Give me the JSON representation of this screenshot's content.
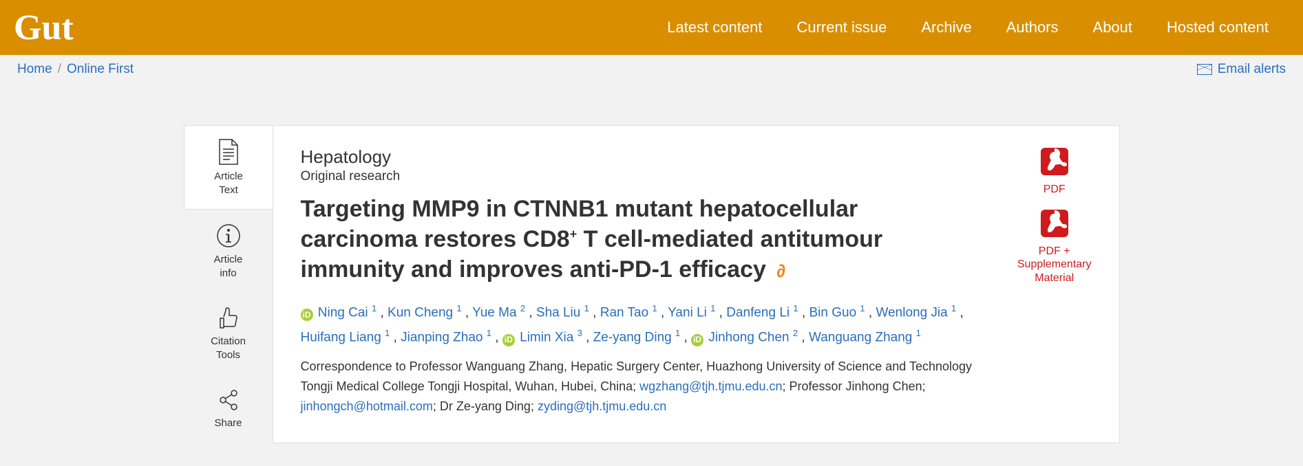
{
  "header": {
    "logo": "Gut",
    "nav": [
      "Latest content",
      "Current issue",
      "Archive",
      "Authors",
      "About",
      "Hosted content"
    ]
  },
  "subbar": {
    "home": "Home",
    "section": "Online First",
    "emailAlerts": "Email alerts"
  },
  "sidebar": [
    {
      "label": "Article\nText",
      "active": true
    },
    {
      "label": "Article\ninfo"
    },
    {
      "label": "Citation\nTools"
    },
    {
      "label": "Share"
    }
  ],
  "article": {
    "category": "Hepatology",
    "subtype": "Original research",
    "titleA": "Targeting MMP9 in CTNNB1 mutant hepatocellular carcinoma restores CD8",
    "titleB": " T cell-mediated antitumour immunity and improves anti-PD-1 efficacy",
    "titleSup": "+"
  },
  "authors": [
    {
      "orcid": true,
      "name": "Ning Cai",
      "aff": "1"
    },
    {
      "name": "Kun Cheng",
      "aff": "1"
    },
    {
      "name": "Yue Ma",
      "aff": "2"
    },
    {
      "name": "Sha Liu",
      "aff": "1"
    },
    {
      "name": "Ran Tao",
      "aff": "1"
    },
    {
      "name": "Yani Li",
      "aff": "1"
    },
    {
      "name": "Danfeng Li",
      "aff": "1"
    },
    {
      "name": "Bin Guo",
      "aff": "1"
    },
    {
      "name": "Wenlong Jia",
      "aff": "1"
    },
    {
      "name": "Huifang Liang",
      "aff": "1"
    },
    {
      "name": "Jianping Zhao",
      "aff": "1"
    },
    {
      "orcid": true,
      "name": "Limin Xia",
      "aff": "3"
    },
    {
      "name": "Ze-yang Ding",
      "aff": "1"
    },
    {
      "orcid": true,
      "name": "Jinhong Chen",
      "aff": "2"
    },
    {
      "name": "Wanguang Zhang",
      "aff": "1"
    }
  ],
  "corr": {
    "pre": "Correspondence to Professor Wanguang Zhang, Hepatic Surgery Center, Huazhong University of Science and Technology Tongji Medical College Tongji Hospital, Wuhan, Hubei, China; ",
    "e1": "wgzhang@tjh.tjmu.edu.cn",
    "mid1": "; Professor Jinhong Chen; ",
    "e2": "jinhongch@hotmail.com",
    "mid2": "; Dr Ze-yang Ding; ",
    "e3": "zyding@tjh.tjmu.edu.cn"
  },
  "pdf": {
    "l1": "PDF",
    "l2a": "PDF +",
    "l2b": "Supplementary",
    "l2c": "Material"
  },
  "colors": {
    "brand": "#d98e00",
    "link": "#2a6ebb",
    "pdf": "#cf1b1e",
    "orcid": "#a6ce39",
    "oa": "#f68212"
  }
}
